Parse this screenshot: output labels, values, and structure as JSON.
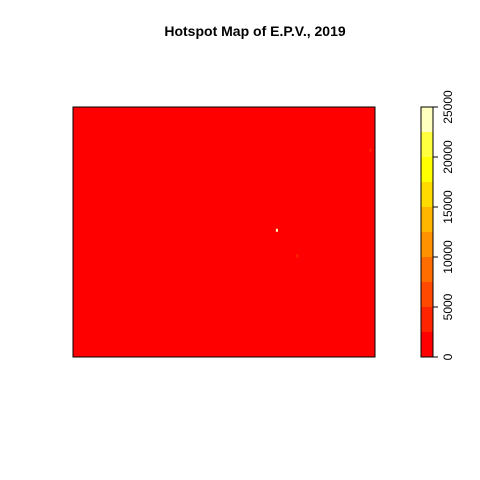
{
  "chart_data": {
    "type": "heatmap",
    "title": "Hotspot Map of E.P.V., 2019",
    "xlabel": "",
    "ylabel": "",
    "background_value": 0,
    "color_scale": {
      "min": 0,
      "max": 25000,
      "breaks": [
        0,
        2500,
        5000,
        7500,
        10000,
        12500,
        15000,
        17500,
        20000,
        22500,
        25000
      ],
      "colors": [
        "#FF0000",
        "#FF2400",
        "#FF4900",
        "#FF6D00",
        "#FF9200",
        "#FFB600",
        "#FFDB00",
        "#FFFF00",
        "#FFFF40",
        "#FFFFBF"
      ],
      "tick_values": [
        0,
        5000,
        10000,
        15000,
        20000,
        25000
      ],
      "tick_labels": [
        "0",
        "5000",
        "10000",
        "15000",
        "20000",
        "25000"
      ]
    },
    "hotspots": [
      {
        "x": 0.675,
        "y": 0.495,
        "value": 24000
      },
      {
        "x": 0.742,
        "y": 0.597,
        "value": 4000
      },
      {
        "x": 0.985,
        "y": 0.175,
        "value": 3000
      }
    ],
    "legend": "right",
    "grid": false
  }
}
